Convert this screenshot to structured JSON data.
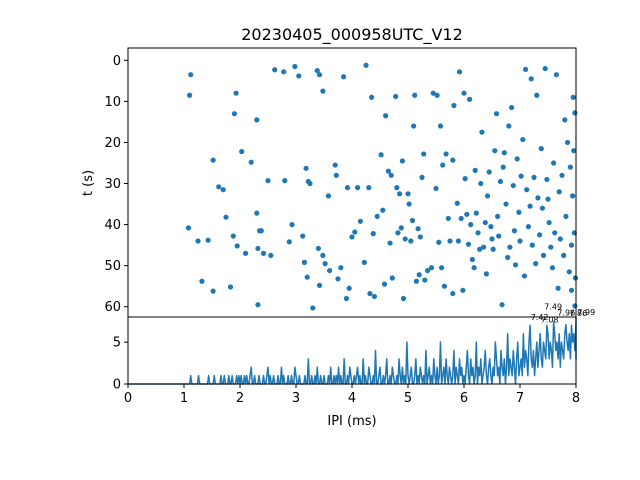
{
  "chart_data": [
    {
      "type": "scatter",
      "title": "20230405_000958UTC_V12",
      "xlabel": "",
      "ylabel": "t (s)",
      "xlim": [
        0,
        8
      ],
      "ylim": [
        62.5,
        -3
      ],
      "y_inverted": true,
      "y_ticks": [
        "0",
        "10",
        "20",
        "30",
        "40",
        "50",
        "60"
      ],
      "color": "#1f77b4",
      "points": [
        [
          1.12,
          3.5
        ],
        [
          1.1,
          8.5
        ],
        [
          1.08,
          40.8
        ],
        [
          1.25,
          44
        ],
        [
          1.43,
          43.8
        ],
        [
          1.32,
          53.8
        ],
        [
          1.52,
          24.3
        ],
        [
          1.62,
          30.8
        ],
        [
          1.7,
          31.5
        ],
        [
          1.52,
          56.2
        ],
        [
          1.75,
          38.2
        ],
        [
          1.83,
          55.2
        ],
        [
          1.9,
          13
        ],
        [
          1.93,
          8
        ],
        [
          1.88,
          42.8
        ],
        [
          1.95,
          45.2
        ],
        [
          2.03,
          22.2
        ],
        [
          2.1,
          47
        ],
        [
          2.2,
          24.8
        ],
        [
          2.3,
          14.5
        ],
        [
          2.3,
          37.2
        ],
        [
          2.35,
          41.5
        ],
        [
          2.32,
          45.8
        ],
        [
          2.38,
          41.5
        ],
        [
          2.32,
          59.5
        ],
        [
          2.42,
          47
        ],
        [
          2.5,
          29.3
        ],
        [
          2.55,
          47.5
        ],
        [
          2.62,
          2.3
        ],
        [
          2.78,
          2.8
        ],
        [
          2.8,
          29.3
        ],
        [
          2.88,
          44.2
        ],
        [
          2.93,
          40
        ],
        [
          2.98,
          1.5
        ],
        [
          3.05,
          3.8
        ],
        [
          3.12,
          42.8
        ],
        [
          3.18,
          26.3
        ],
        [
          3.22,
          29.5
        ],
        [
          3.25,
          30
        ],
        [
          3.15,
          49.2
        ],
        [
          3.2,
          52.8
        ],
        [
          3.3,
          60.3
        ],
        [
          3.38,
          2.5
        ],
        [
          3.42,
          3.5
        ],
        [
          3.48,
          7.5
        ],
        [
          3.4,
          45.8
        ],
        [
          3.48,
          47.5
        ],
        [
          3.42,
          54.8
        ],
        [
          3.52,
          49.5
        ],
        [
          3.58,
          33
        ],
        [
          3.6,
          51.2
        ],
        [
          3.7,
          25.5
        ],
        [
          3.72,
          28
        ],
        [
          3.8,
          50.5
        ],
        [
          3.75,
          53.2
        ],
        [
          3.85,
          4
        ],
        [
          3.92,
          31
        ],
        [
          3.95,
          55.5
        ],
        [
          3.9,
          58
        ],
        [
          4.0,
          43
        ],
        [
          4.1,
          31
        ],
        [
          4.05,
          41.8
        ],
        [
          4.15,
          39.2
        ],
        [
          4.22,
          49.2
        ],
        [
          4.25,
          1.2
        ],
        [
          4.3,
          31
        ],
        [
          4.32,
          56.8
        ],
        [
          4.35,
          9
        ],
        [
          4.38,
          42.2
        ],
        [
          4.4,
          57.5
        ],
        [
          4.45,
          38
        ],
        [
          4.52,
          23
        ],
        [
          4.55,
          36.5
        ],
        [
          4.6,
          13.5
        ],
        [
          4.58,
          54.5
        ],
        [
          4.65,
          27
        ],
        [
          4.68,
          44.5
        ],
        [
          4.7,
          28
        ],
        [
          4.72,
          53
        ],
        [
          4.78,
          8.8
        ],
        [
          4.8,
          31
        ],
        [
          4.82,
          42
        ],
        [
          4.85,
          32.5
        ],
        [
          4.88,
          40.8
        ],
        [
          4.9,
          24.5
        ],
        [
          4.95,
          43.5
        ],
        [
          4.92,
          58
        ],
        [
          5.0,
          32.5
        ],
        [
          5.02,
          35
        ],
        [
          5.05,
          44
        ],
        [
          5.08,
          39
        ],
        [
          5.1,
          16
        ],
        [
          5.12,
          8.5
        ],
        [
          5.15,
          53.8
        ],
        [
          5.18,
          41
        ],
        [
          5.2,
          52.2
        ],
        [
          5.22,
          43
        ],
        [
          5.25,
          28.5
        ],
        [
          5.28,
          22.8
        ],
        [
          5.3,
          53.5
        ],
        [
          5.35,
          51.2
        ],
        [
          5.42,
          50.5
        ],
        [
          5.45,
          8
        ],
        [
          5.5,
          31.2
        ],
        [
          5.52,
          8.5
        ],
        [
          5.55,
          44.3
        ],
        [
          5.58,
          16
        ],
        [
          5.6,
          50.5
        ],
        [
          5.62,
          25.5
        ],
        [
          5.65,
          55
        ],
        [
          5.68,
          22.8
        ],
        [
          5.72,
          38.5
        ],
        [
          5.75,
          44
        ],
        [
          5.8,
          24.3
        ],
        [
          5.82,
          11
        ],
        [
          5.8,
          56.8
        ],
        [
          5.88,
          34.8
        ],
        [
          5.9,
          44
        ],
        [
          5.92,
          2.8
        ],
        [
          5.95,
          38.5
        ],
        [
          5.98,
          56
        ],
        [
          6.0,
          8
        ],
        [
          6.02,
          28.8
        ],
        [
          6.05,
          37.5
        ],
        [
          6.08,
          44.8
        ],
        [
          6.1,
          9.5
        ],
        [
          6.12,
          40
        ],
        [
          6.15,
          48.5
        ],
        [
          6.18,
          50.5
        ],
        [
          6.2,
          26.8
        ],
        [
          6.22,
          37.2
        ],
        [
          6.25,
          42
        ],
        [
          6.28,
          46
        ],
        [
          6.3,
          30
        ],
        [
          6.32,
          17.5
        ],
        [
          6.35,
          45.5
        ],
        [
          6.38,
          39.5
        ],
        [
          6.4,
          52
        ],
        [
          6.42,
          33
        ],
        [
          6.45,
          27.2
        ],
        [
          6.48,
          40.5
        ],
        [
          6.5,
          43.5
        ],
        [
          6.52,
          46
        ],
        [
          6.55,
          22
        ],
        [
          6.58,
          13
        ],
        [
          6.6,
          38
        ],
        [
          6.62,
          42.8
        ],
        [
          6.65,
          29.5
        ],
        [
          6.68,
          59.5
        ],
        [
          6.7,
          26
        ],
        [
          6.72,
          22.5
        ],
        [
          6.75,
          35
        ],
        [
          6.78,
          48
        ],
        [
          6.8,
          16
        ],
        [
          6.82,
          45.5
        ],
        [
          6.85,
          11.5
        ],
        [
          6.88,
          30.5
        ],
        [
          6.9,
          41.5
        ],
        [
          6.92,
          49.8
        ],
        [
          6.95,
          24
        ],
        [
          6.98,
          37
        ],
        [
          7.0,
          44
        ],
        [
          7.02,
          28.2
        ],
        [
          7.05,
          19.3
        ],
        [
          7.08,
          52.5
        ],
        [
          7.1,
          2.2
        ],
        [
          7.12,
          31.5
        ],
        [
          7.15,
          40.5
        ],
        [
          7.18,
          35.5
        ],
        [
          7.2,
          4.5
        ],
        [
          7.22,
          45
        ],
        [
          7.25,
          28.5
        ],
        [
          7.28,
          49.5
        ],
        [
          7.3,
          8.5
        ],
        [
          7.32,
          33.5
        ],
        [
          7.35,
          42.5
        ],
        [
          7.38,
          21.5
        ],
        [
          7.4,
          36
        ],
        [
          7.42,
          47.5
        ],
        [
          7.45,
          2
        ],
        [
          7.48,
          29
        ],
        [
          7.5,
          33.8
        ],
        [
          7.52,
          39.5
        ],
        [
          7.55,
          45.5
        ],
        [
          7.58,
          50.5
        ],
        [
          7.6,
          25
        ],
        [
          7.62,
          42
        ],
        [
          7.65,
          3.5
        ],
        [
          7.68,
          55.5
        ],
        [
          7.7,
          32
        ],
        [
          7.72,
          43.5
        ],
        [
          7.75,
          28
        ],
        [
          7.78,
          47.5
        ],
        [
          7.8,
          14.5
        ],
        [
          7.82,
          38
        ],
        [
          7.85,
          20
        ],
        [
          7.88,
          51.5
        ],
        [
          7.9,
          26
        ],
        [
          7.92,
          45
        ],
        [
          7.95,
          9
        ],
        [
          7.98,
          12.8
        ],
        [
          7.96,
          22
        ],
        [
          7.94,
          33
        ],
        [
          7.97,
          42
        ],
        [
          7.99,
          53
        ],
        [
          7.98,
          59.8
        ],
        [
          7.92,
          56
        ]
      ]
    },
    {
      "type": "line",
      "xlabel": "IPI (ms)",
      "ylabel": "",
      "xlim": [
        0,
        8
      ],
      "ylim": [
        0,
        8
      ],
      "x_ticks": [
        "0",
        "1",
        "2",
        "3",
        "4",
        "5",
        "6",
        "7",
        "8"
      ],
      "y_ticks": [
        "0",
        "5"
      ],
      "color": "#1f77b4",
      "x_range": [
        0,
        8
      ],
      "step": 0.02,
      "values": [
        0,
        0,
        0,
        0,
        0,
        0,
        0,
        0,
        0,
        0,
        0,
        0,
        0,
        0,
        0,
        0,
        0,
        0,
        0,
        0,
        0,
        0,
        0,
        0,
        0,
        0,
        0,
        0,
        0,
        0,
        0,
        0,
        0,
        0,
        0,
        0,
        0,
        0,
        0,
        0,
        0,
        0,
        0,
        0,
        0,
        0,
        0,
        0,
        0,
        0,
        0,
        0,
        0,
        0,
        0,
        0,
        1,
        0,
        0,
        0,
        0,
        0,
        0,
        1,
        0,
        0,
        0,
        0,
        0,
        0,
        0,
        0,
        1,
        0,
        0,
        0,
        0,
        1,
        0,
        0,
        0,
        0,
        0,
        1,
        0,
        0,
        1,
        0,
        0,
        0,
        1,
        0,
        0,
        1,
        0,
        0,
        0,
        1,
        0,
        1,
        0,
        1,
        0,
        0,
        1,
        0,
        1,
        0,
        0,
        1,
        2,
        0,
        0,
        1,
        0,
        0,
        0,
        1,
        0,
        0,
        0,
        1,
        0,
        0,
        1,
        2,
        0,
        1,
        0,
        0,
        1,
        0,
        0,
        0,
        1,
        0,
        0,
        2,
        0,
        1,
        0,
        0,
        0,
        1,
        0,
        0,
        1,
        0,
        0,
        2,
        1,
        0,
        0,
        1,
        0,
        0,
        0,
        0,
        1,
        0,
        0,
        3,
        0,
        0,
        1,
        0,
        0,
        1,
        0,
        2,
        0,
        0,
        1,
        0,
        0,
        1,
        0,
        0,
        0,
        1,
        0,
        2,
        0,
        0,
        1,
        0,
        1,
        0,
        2,
        0,
        1,
        0,
        0,
        3,
        0,
        0,
        1,
        0,
        2,
        1,
        0,
        0,
        1,
        0,
        1,
        2,
        0,
        1,
        0,
        0,
        3,
        0,
        1,
        0,
        0,
        2,
        1,
        0,
        0,
        1,
        0,
        4,
        0,
        0,
        1,
        2,
        0,
        0,
        1,
        0,
        1,
        3,
        0,
        0,
        1,
        0,
        2,
        1,
        0,
        0,
        1,
        0,
        3,
        1,
        0,
        2,
        0,
        1,
        0,
        5,
        1,
        0,
        1,
        2,
        0,
        0,
        1,
        3,
        0,
        1,
        0,
        2,
        1,
        0,
        1,
        0,
        4,
        0,
        1,
        2,
        0,
        1,
        0,
        3,
        1,
        0,
        2,
        0,
        1,
        5,
        0,
        1,
        2,
        0,
        3,
        1,
        0,
        2,
        1,
        0,
        1,
        4,
        0,
        2,
        1,
        0,
        3,
        1,
        2,
        0,
        1,
        0,
        2,
        4,
        1,
        0,
        3,
        1,
        2,
        0,
        1,
        5,
        0,
        2,
        1,
        3,
        0,
        1,
        2,
        4,
        1,
        0,
        2,
        3,
        1,
        0,
        2,
        1,
        5,
        3,
        1,
        2,
        0,
        4,
        2,
        1,
        3,
        0,
        2,
        6,
        1,
        3,
        2,
        1,
        4,
        2,
        0,
        3,
        5,
        1,
        2,
        3,
        1,
        6,
        2,
        4,
        3,
        1,
        5,
        7,
        3,
        2,
        4,
        1,
        3,
        5,
        2,
        4,
        6,
        3,
        2,
        5,
        4,
        3,
        7,
        6,
        3,
        5,
        4,
        2,
        7.42,
        6,
        4,
        5,
        3,
        6,
        2,
        5,
        4,
        3,
        6,
        7.08,
        5,
        4,
        6,
        3,
        7,
        5,
        6,
        4,
        7.49,
        5,
        6,
        3,
        7.96
      ]
    }
  ],
  "peak_labels": [
    {
      "x": 7.35,
      "y": 7.42,
      "text": "7.42"
    },
    {
      "x": 7.45,
      "y": 7.49,
      "text": "7.49"
    },
    {
      "x": 7.35,
      "y": 7.08,
      "text": "7.08"
    },
    {
      "x": 7.97,
      "y": 7.96,
      "text": "7.96"
    },
    {
      "x": 7.97,
      "y": 7.86,
      "text": "7.86"
    },
    {
      "x": 7.97,
      "y": 7.99,
      "text": "7.99"
    }
  ]
}
